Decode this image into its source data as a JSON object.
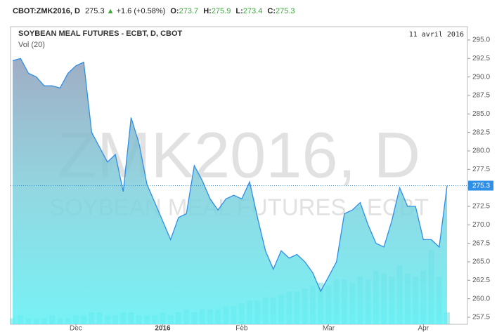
{
  "header": {
    "symbol": "CBOT:ZMK2016, D",
    "price": 275.3,
    "change": "+1.6",
    "change_pct": "(+0.58%)",
    "ohlc": [
      {
        "label": "O:",
        "value": 273.7
      },
      {
        "label": "H:",
        "value": 275.9
      },
      {
        "label": "L:",
        "value": 273.4
      },
      {
        "label": "C:",
        "value": 275.3
      }
    ]
  },
  "chart_data": {
    "type": "area",
    "title": "SOYBEAN MEAL FUTURES - ECBT, D, CBOT",
    "subtitle": "Vol (20)",
    "date": "11 avril 2016",
    "watermark": [
      "ZMK2016, D",
      "SOYBEAN MEAL FUTURES - ECBT"
    ],
    "categories": [
      null,
      null,
      null,
      null,
      null,
      null,
      null,
      null,
      "Dec",
      null,
      null,
      null,
      null,
      null,
      null,
      null,
      null,
      null,
      null,
      "2016",
      null,
      null,
      null,
      null,
      null,
      null,
      null,
      null,
      null,
      "Feb",
      null,
      null,
      null,
      null,
      null,
      null,
      null,
      null,
      null,
      null,
      "Mar",
      null,
      null,
      null,
      null,
      null,
      null,
      null,
      null,
      null,
      null,
      null,
      "Apr",
      null,
      null,
      null
    ],
    "series": [
      {
        "color": "#2e8fe6",
        "values": [
          292.2,
          292.5,
          290.5,
          290.0,
          288.8,
          288.8,
          288.5,
          290.5,
          291.5,
          292.0,
          282.5,
          280.5,
          278.5,
          279.5,
          274.5,
          284.5,
          281.0,
          275.5,
          273.0,
          270.5,
          268.0,
          271.0,
          271.5,
          278.0,
          276.0,
          273.5,
          272.0,
          273.5,
          274.0,
          273.5,
          275.8,
          271.0,
          266.5,
          264.0,
          266.5,
          265.5,
          266.0,
          265.0,
          263.5,
          261.0,
          263.0,
          265.0,
          271.5,
          272.0,
          273.0,
          270.0,
          267.5,
          267.0,
          270.5,
          275.0,
          272.5,
          272.5,
          268.0,
          268.0,
          267.0,
          275.3
        ]
      },
      {
        "color": "#6fdcdc",
        "axis": "y2",
        "values": [
          2,
          3,
          2,
          2,
          2,
          3,
          2,
          2,
          3,
          3,
          4,
          4,
          3,
          3,
          4,
          4,
          3,
          3,
          3,
          4,
          3,
          4,
          5,
          4,
          5,
          5,
          5,
          6,
          6,
          7,
          8,
          8,
          9,
          9,
          10,
          11,
          11,
          12,
          13,
          14,
          13,
          15,
          15,
          14,
          16,
          15,
          18,
          17,
          16,
          20,
          17,
          16,
          18,
          25,
          16,
          4
        ]
      }
    ],
    "ylim": [
      256.55,
      296.8
    ],
    "yticks": [
      257.5,
      {
        "value": 260,
        "label": "260.0"
      },
      262.5,
      {
        "value": 265,
        "label": "265.0"
      },
      267.5,
      {
        "value": 270,
        "label": "270.0"
      },
      272.5,
      {
        "value": 275,
        "label": "275.0"
      },
      277.5,
      {
        "value": 280,
        "label": "280.0"
      },
      282.5,
      {
        "value": 285,
        "label": "285.0"
      },
      287.5,
      {
        "value": 290,
        "label": "290.0"
      },
      292.5,
      {
        "value": 295,
        "label": "295.0"
      }
    ],
    "y2lim": [
      0,
      100
    ]
  }
}
